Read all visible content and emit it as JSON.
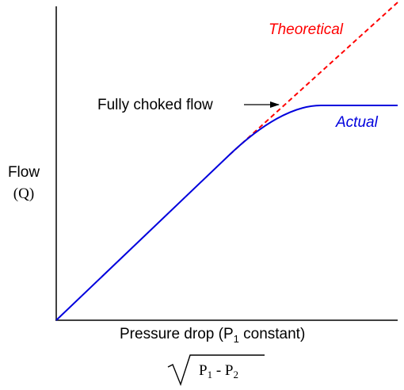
{
  "diagram": {
    "y_label_line1": "Flow",
    "y_label_line2": "(Q)",
    "x_label_prefix": "Pressure drop (P",
    "x_label_sub": "1",
    "x_label_suffix": " constant)",
    "formula": {
      "p_left": "P",
      "p_left_sub": "1",
      "minus": " - ",
      "p_right": "P",
      "p_right_sub": "2"
    },
    "theoretical_label": "Theoretical",
    "actual_label": "Actual",
    "annotation_label": "Fully choked flow",
    "colors": {
      "theoretical": "#ff0000",
      "actual": "#0000dd",
      "axes": "#000000"
    }
  }
}
